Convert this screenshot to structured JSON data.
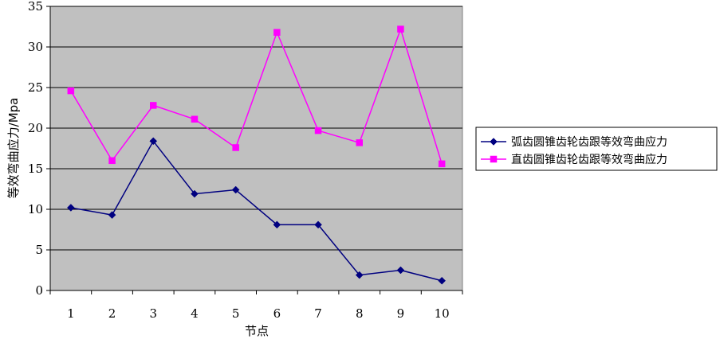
{
  "chart_data": {
    "type": "line",
    "title": "",
    "xlabel": "节点",
    "ylabel": "等效弯曲应力/Mpa",
    "categories": [
      "1",
      "2",
      "3",
      "4",
      "5",
      "6",
      "7",
      "8",
      "9",
      "10"
    ],
    "ylim": [
      0,
      35
    ],
    "yticks": [
      0,
      5,
      10,
      15,
      20,
      25,
      30,
      35
    ],
    "grid": true,
    "legend_position": "right",
    "plot_background": "#c0c0c0",
    "series": [
      {
        "name": "弧齿圆锥齿轮齿跟等效弯曲应力",
        "color": "#000080",
        "marker": "diamond",
        "values": [
          10.2,
          9.3,
          18.4,
          11.9,
          12.4,
          8.1,
          8.1,
          1.9,
          2.5,
          1.2
        ]
      },
      {
        "name": "直齿圆锥齿轮齿跟等效弯曲应力",
        "color": "#ff00ff",
        "marker": "square",
        "values": [
          24.6,
          16.0,
          22.8,
          21.1,
          17.6,
          31.8,
          19.7,
          18.2,
          32.2,
          15.6
        ]
      }
    ]
  }
}
